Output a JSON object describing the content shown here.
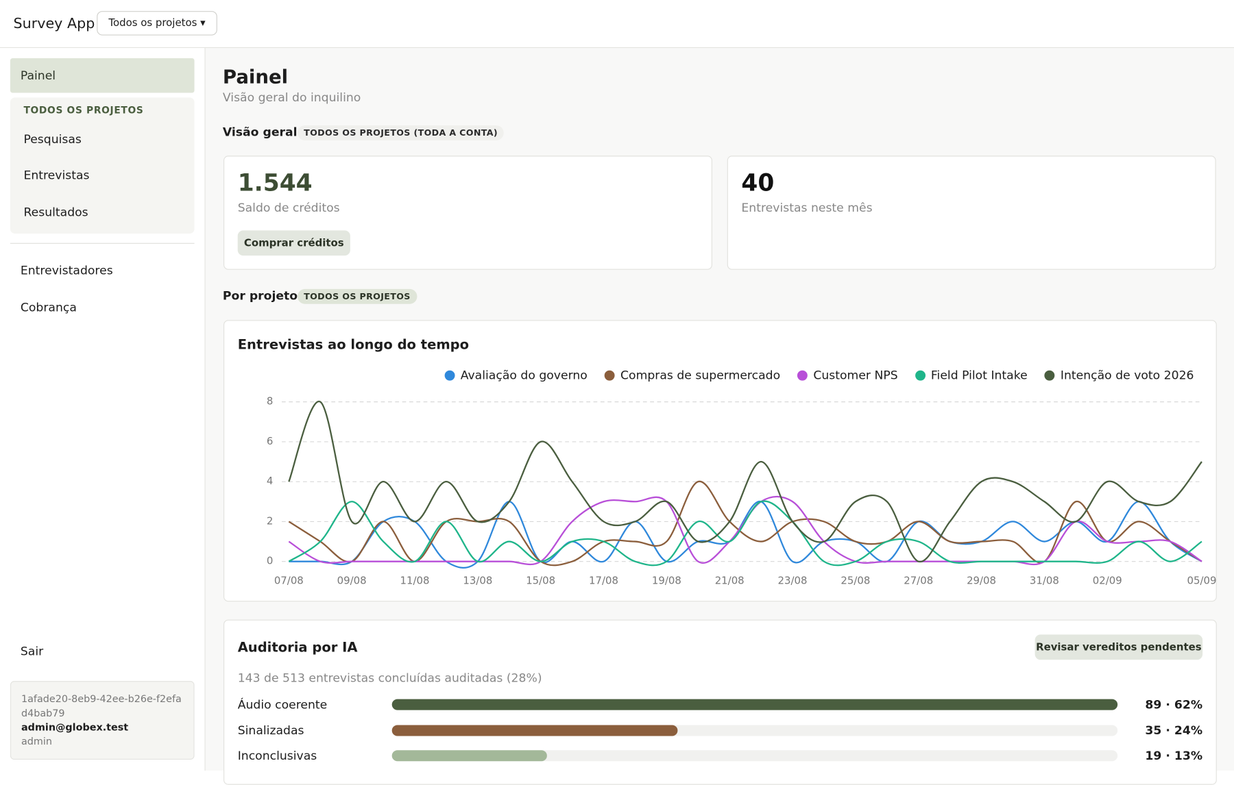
{
  "header": {
    "app_name": "Survey App",
    "project_selector": "Todos os projetos ▾"
  },
  "sidebar": {
    "active": "Painel",
    "group_title": "TODOS OS PROJETOS",
    "group_items": [
      "Pesquisas",
      "Entrevistas",
      "Resultados"
    ],
    "items": [
      "Entrevistadores",
      "Cobrança"
    ],
    "logout": "Sair",
    "account": {
      "tenant_id": "1afade20-8eb9-42ee-b26e-f2efad4bab79",
      "email": "admin@globex.test",
      "role": "admin"
    }
  },
  "page": {
    "title": "Painel",
    "subtitle": "Visão geral do inquilino"
  },
  "overview": {
    "title": "Visão geral",
    "badge": "TODOS OS PROJETOS (TODA A CONTA)",
    "cards": [
      {
        "value": "1.544",
        "label": "Saldo de créditos",
        "button": "Comprar créditos"
      },
      {
        "value": "40",
        "label": "Entrevistas neste mês"
      }
    ]
  },
  "by_project": {
    "title": "Por projeto",
    "badge": "TODOS OS PROJETOS"
  },
  "chart_data": {
    "type": "line",
    "title": "Entrevistas ao longo do tempo",
    "categories": [
      "07/08",
      null,
      "09/08",
      null,
      "11/08",
      null,
      "13/08",
      null,
      "15/08",
      null,
      "17/08",
      null,
      "19/08",
      null,
      "21/08",
      null,
      "23/08",
      null,
      "25/08",
      null,
      "27/08",
      null,
      "29/08",
      null,
      "31/08",
      null,
      "02/09",
      null,
      null,
      "05/09"
    ],
    "series": [
      {
        "name": "Avaliação do governo",
        "color": "#2f88db",
        "values": [
          0,
          0,
          0,
          2,
          2,
          0,
          0,
          3,
          0,
          1,
          0,
          2,
          0,
          1,
          1,
          3,
          0,
          1,
          1,
          0,
          2,
          1,
          1,
          2,
          1,
          2,
          1,
          3,
          1,
          0
        ]
      },
      {
        "name": "Compras de supermercado",
        "color": "#8b5e3c",
        "values": [
          2,
          1,
          0,
          2,
          0,
          2,
          2,
          2,
          0,
          0,
          1,
          1,
          1,
          4,
          2,
          1,
          2,
          2,
          1,
          1,
          2,
          1,
          1,
          1,
          0,
          3,
          1,
          2,
          1,
          0
        ]
      },
      {
        "name": "Customer NPS",
        "color": "#b84fd8",
        "values": [
          1,
          0,
          0,
          0,
          0,
          0,
          0,
          0,
          0,
          2,
          3,
          3,
          3,
          0,
          1,
          3,
          3,
          1,
          0,
          0,
          0,
          0,
          0,
          0,
          0,
          2,
          1,
          1,
          1,
          0
        ]
      },
      {
        "name": "Field Pilot Intake",
        "color": "#1fb58a",
        "values": [
          0,
          1,
          3,
          1,
          0,
          2,
          0,
          1,
          0,
          1,
          1,
          0,
          0,
          2,
          1,
          3,
          2,
          0,
          0,
          1,
          1,
          0,
          0,
          0,
          0,
          0,
          0,
          1,
          0,
          1
        ]
      },
      {
        "name": "Intenção de voto 2026",
        "color": "#4a5e3f",
        "values": [
          4,
          8,
          2,
          4,
          2,
          4,
          2,
          3,
          6,
          4,
          2,
          2,
          3,
          1,
          2,
          5,
          2,
          1,
          3,
          3,
          0,
          2,
          4,
          4,
          3,
          2,
          4,
          3,
          3,
          5
        ]
      }
    ],
    "ylim": [
      0,
      8
    ],
    "yticks": [
      0,
      2,
      4,
      6,
      8
    ],
    "grid": true,
    "legend": "top-right"
  },
  "audit": {
    "title": "Auditoria por IA",
    "button": "Revisar vereditos pendentes",
    "summary": "143 de 513 entrevistas concluídas auditadas (28%)",
    "rows": [
      {
        "label": "Áudio coerente",
        "value": 89,
        "percent": 62,
        "value_label": "89 · 62%",
        "color": "#4a5e3f"
      },
      {
        "label": "Sinalizadas",
        "value": 35,
        "percent": 24,
        "value_label": "35 · 24%",
        "color": "#8b5e3c"
      },
      {
        "label": "Inconclusivas",
        "value": 19,
        "percent": 13,
        "value_label": "19 · 13%",
        "color": "#a3b899"
      }
    ]
  }
}
